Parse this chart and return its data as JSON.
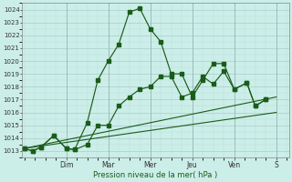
{
  "title": "",
  "xlabel": "Pression niveau de la mer( hPa )",
  "bg_color": "#cceee8",
  "grid_color_major": "#aacccc",
  "grid_color_minor": "#bbdddd",
  "line_color": "#1a5c1a",
  "ylim": [
    1012.5,
    1024.5
  ],
  "xlim": [
    -0.05,
    6.3
  ],
  "day_labels": [
    "Dim",
    "Mar",
    "Mer",
    "Jeu",
    "Ven",
    "S"
  ],
  "day_positions": [
    1.0,
    2.0,
    3.0,
    4.0,
    5.0,
    6.0
  ],
  "series1_x": [
    0.0,
    0.2,
    0.4,
    0.7,
    1.0,
    1.2,
    1.5,
    1.75,
    2.0,
    2.25,
    2.5,
    2.75,
    3.0,
    3.25,
    3.5,
    3.75,
    4.0,
    4.25,
    4.5,
    4.75,
    5.0,
    5.3,
    5.5,
    5.75
  ],
  "series1_y": [
    1013.2,
    1013.0,
    1013.3,
    1014.2,
    1013.2,
    1013.1,
    1015.2,
    1018.5,
    1020.0,
    1021.3,
    1023.8,
    1024.1,
    1022.5,
    1021.5,
    1019.0,
    1019.0,
    1017.2,
    1018.5,
    1019.8,
    1019.8,
    1017.8,
    1018.3,
    1016.5,
    1017.0
  ],
  "series2_x": [
    0.0,
    0.2,
    0.4,
    0.7,
    1.0,
    1.2,
    1.5,
    1.75,
    2.0,
    2.25,
    2.5,
    2.75,
    3.0,
    3.25,
    3.5,
    3.75,
    4.0,
    4.25,
    4.5,
    4.75,
    5.0,
    5.3,
    5.5,
    5.75
  ],
  "series2_y": [
    1013.2,
    1013.0,
    1013.3,
    1014.2,
    1013.2,
    1013.1,
    1013.5,
    1015.0,
    1015.0,
    1016.5,
    1017.2,
    1017.8,
    1018.0,
    1018.8,
    1018.8,
    1017.2,
    1017.5,
    1018.8,
    1018.2,
    1019.2,
    1017.8,
    1018.3,
    1016.5,
    1017.0
  ],
  "series3_x": [
    0.0,
    6.0
  ],
  "series3_y": [
    1013.2,
    1017.2
  ],
  "series4_x": [
    0.0,
    6.0
  ],
  "series4_y": [
    1013.2,
    1016.0
  ],
  "yticks": [
    1013,
    1014,
    1015,
    1016,
    1017,
    1018,
    1019,
    1020,
    1021,
    1022,
    1023,
    1024
  ]
}
